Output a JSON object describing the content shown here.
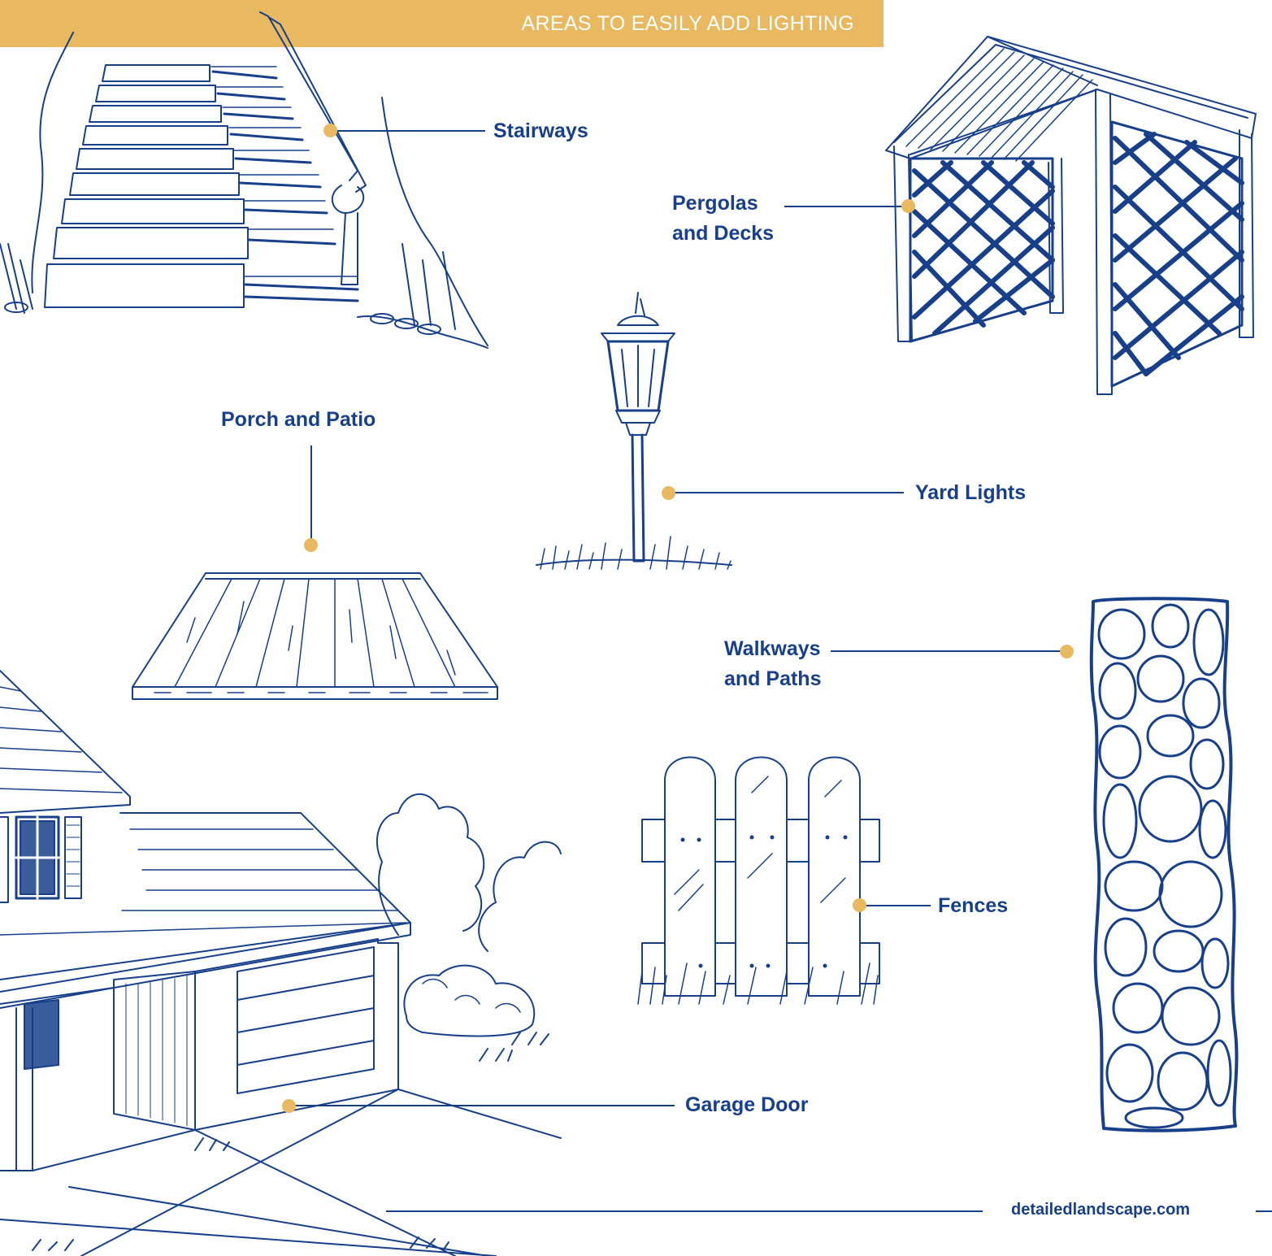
{
  "banner": {
    "title": "AREAS TO EASILY ADD LIGHTING"
  },
  "labels": {
    "stairways": "Stairways",
    "pergolas_line1": "Pergolas",
    "pergolas_line2": "and Decks",
    "porch": "Porch and Patio",
    "yard_lights": "Yard Lights",
    "walkways_line1": "Walkways",
    "walkways_line2": "and Paths",
    "fences": "Fences",
    "garage": "Garage Door"
  },
  "footer": {
    "website": "detailedlandscape.com"
  },
  "colors": {
    "ink": "#173f8a",
    "accent": "#e8b960",
    "background": "#ffffff"
  },
  "icons": [
    "stairway-illustration",
    "pergola-illustration",
    "lamp-post-illustration",
    "deck-illustration",
    "stone-path-illustration",
    "picket-fence-illustration",
    "house-garage-illustration"
  ]
}
